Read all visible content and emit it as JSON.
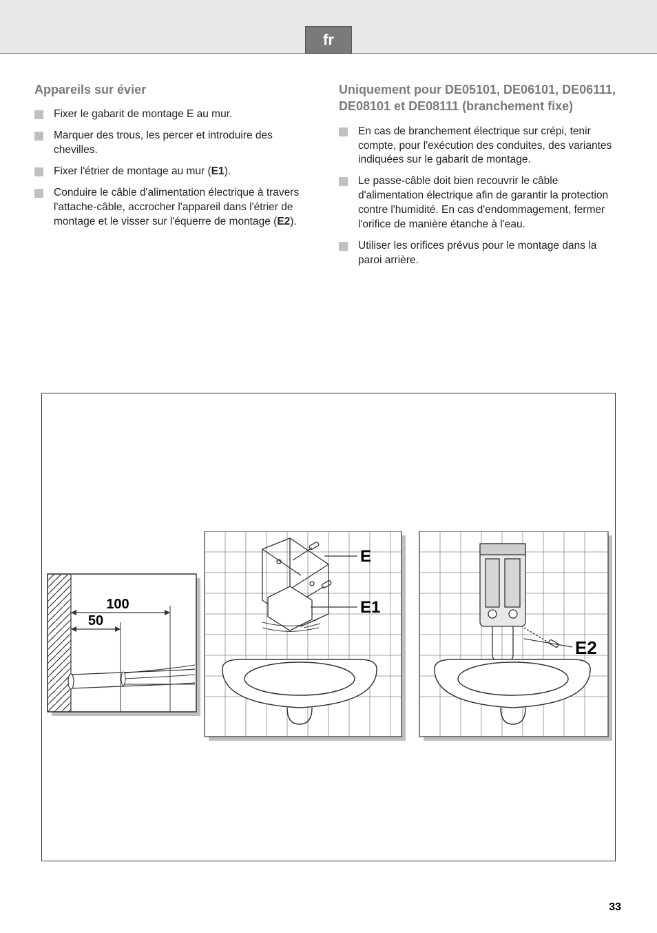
{
  "lang_tab": "fr",
  "page_number": "33",
  "left": {
    "title": "Appareils sur évier",
    "items": [
      [
        {
          "t": "Fixer le gabarit de montage E au mur.",
          "b": false
        }
      ],
      [
        {
          "t": "Marquer des trous, les percer et introduire des chevilles.",
          "b": false
        }
      ],
      [
        {
          "t": "Fixer l'étrier de montage au mur (",
          "b": false
        },
        {
          "t": "E1",
          "b": true
        },
        {
          "t": ").",
          "b": false
        }
      ],
      [
        {
          "t": "Conduire le câble d'alimentation électrique à travers l'attache-câble, accrocher l'appareil dans l'étrier de montage et le visser sur l'équerre de montage (",
          "b": false
        },
        {
          "t": "E2",
          "b": true
        },
        {
          "t": ").",
          "b": false
        }
      ]
    ]
  },
  "right": {
    "title": "Uniquement pour DE05101, DE06101, DE06111, DE08101 et DE08111 (branchement fixe)",
    "items": [
      [
        {
          "t": "En cas de branchement électrique sur crépi, tenir compte, pour l'exécution des conduites, des variantes indiquées sur le gabarit de montage.",
          "b": false
        }
      ],
      [
        {
          "t": "Le passe-câble doit bien recouvrir le câble d'alimentation électrique afin de garantir la protection contre l'humidité. En cas d'endommagement, fermer l'orifice de manière étanche à l'eau.",
          "b": false
        }
      ],
      [
        {
          "t": "Utiliser les orifices prévus pour le montage dans la paroi arrière.",
          "b": false
        }
      ]
    ]
  },
  "figure": {
    "dim100": "100",
    "dim50": "50",
    "labelE": "E",
    "labelE1": "E1",
    "labelE2": "E2",
    "colors": {
      "stroke": "#333333",
      "shadow": "#bfbfbf",
      "grid": "#888888",
      "fill_light": "#ffffff"
    }
  }
}
